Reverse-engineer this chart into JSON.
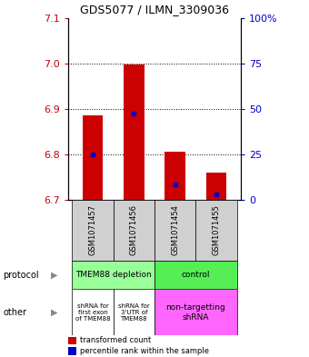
{
  "title": "GDS5077 / ILMN_3309036",
  "samples": [
    "GSM1071457",
    "GSM1071456",
    "GSM1071454",
    "GSM1071455"
  ],
  "bar_bottoms": [
    6.7,
    6.7,
    6.7,
    6.7
  ],
  "bar_tops": [
    6.885,
    6.998,
    6.805,
    6.76
  ],
  "blue_values": [
    6.8,
    6.89,
    6.735,
    6.712
  ],
  "ylim": [
    6.7,
    7.1
  ],
  "yticks_left": [
    6.7,
    6.8,
    6.9,
    7.0,
    7.1
  ],
  "yticks_right": [
    0,
    25,
    50,
    75,
    100
  ],
  "yticks_right_labels": [
    "0",
    "25",
    "50",
    "75",
    "100%"
  ],
  "left_color": "#cc0000",
  "right_color": "#0000cc",
  "bar_color": "#cc0000",
  "blue_color": "#0000cc",
  "grid_dotted_values": [
    6.8,
    6.9,
    7.0
  ],
  "legend_red_label": "transformed count",
  "legend_blue_label": "percentile rank within the sample",
  "bar_width": 0.5
}
